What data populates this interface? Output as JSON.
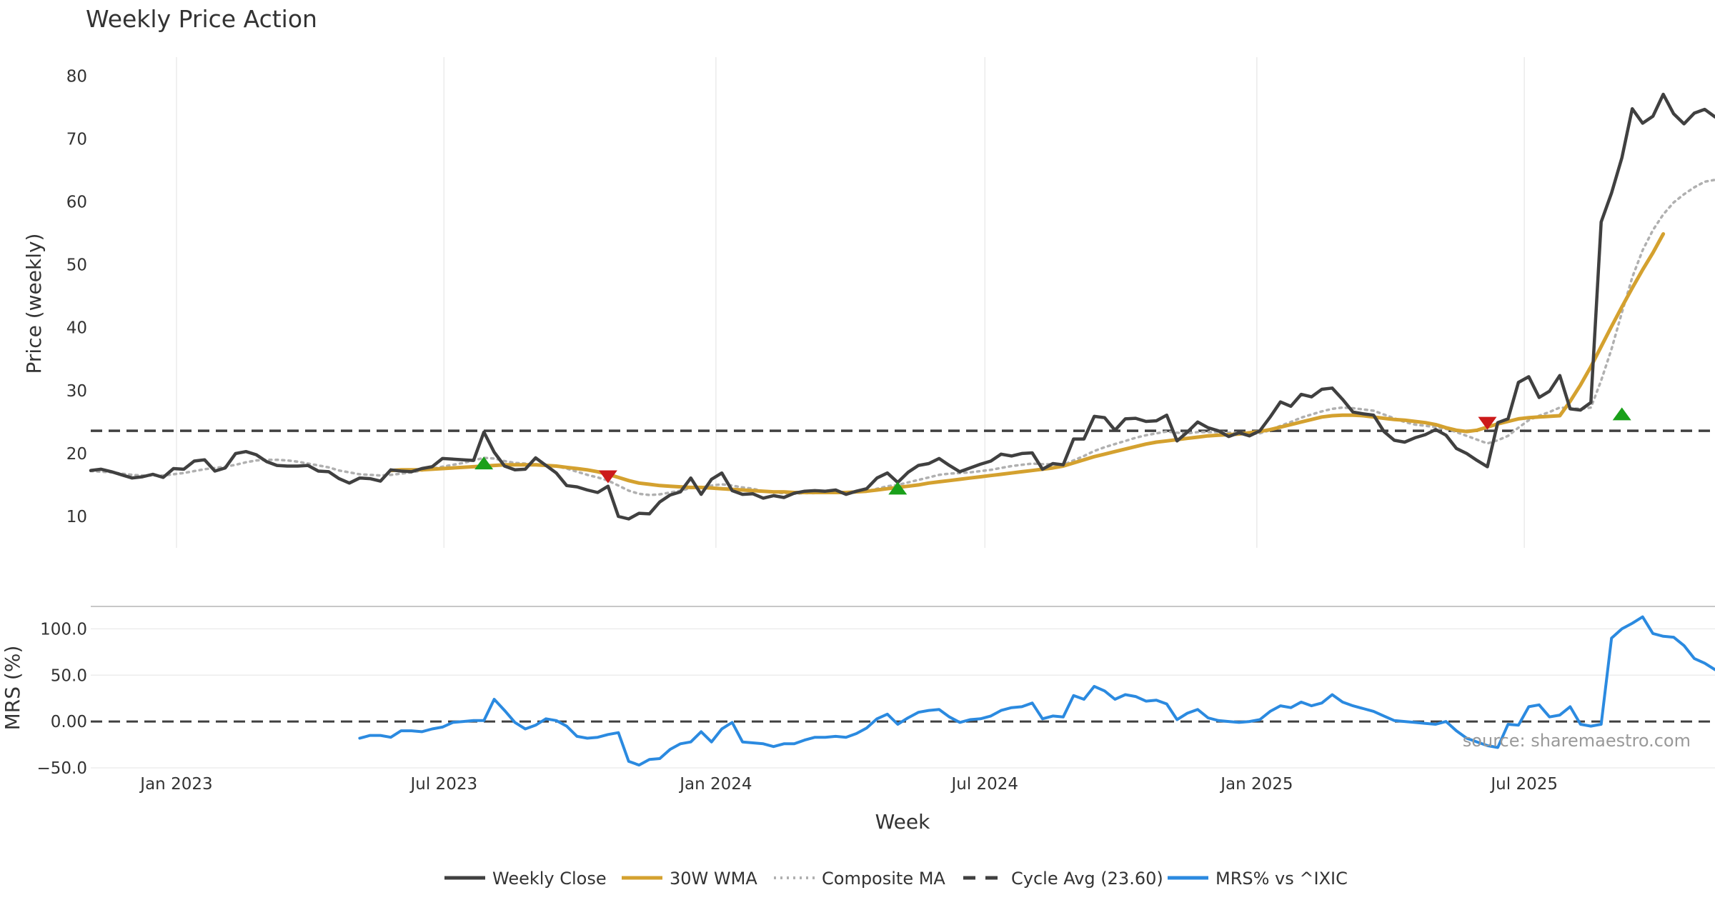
{
  "chart_data": {
    "type": "line",
    "title": "Weekly Price Action",
    "xlabel": "Week",
    "source": "source: sharemaestro.com",
    "x_start": "2022-11-04",
    "x_end": "2025-11-07",
    "x_ticks": [
      {
        "label": "Jan 2023",
        "date": "2023-01-01"
      },
      {
        "label": "Jul 2023",
        "date": "2023-07-01"
      },
      {
        "label": "Jan 2024",
        "date": "2024-01-01"
      },
      {
        "label": "Jul 2024",
        "date": "2024-07-01"
      },
      {
        "label": "Jan 2025",
        "date": "2025-01-01"
      },
      {
        "label": "Jul 2025",
        "date": "2025-07-01"
      }
    ],
    "price_panel": {
      "ylabel": "Price (weekly)",
      "ylim": [
        5,
        83
      ],
      "yticks": [
        10,
        20,
        30,
        40,
        50,
        60,
        70,
        80
      ],
      "cycle_avg": 23.6,
      "series": [
        {
          "key": "close",
          "name": "Weekly Close",
          "color": "#404040",
          "style": "solid",
          "start_week": 0,
          "values": [
            17.3,
            17.5,
            17.1,
            16.6,
            16.1,
            16.3,
            16.7,
            16.2,
            17.6,
            17.5,
            18.8,
            19.0,
            17.2,
            17.7,
            20.0,
            20.3,
            19.8,
            18.7,
            18.1,
            18.0,
            18.0,
            18.1,
            17.2,
            17.1,
            16.0,
            15.3,
            16.1,
            16.0,
            15.6,
            17.4,
            17.2,
            17.1,
            17.6,
            17.9,
            19.2,
            19.1,
            19.0,
            18.9,
            23.4,
            20.2,
            18.0,
            17.4,
            17.5,
            19.3,
            18.1,
            16.9,
            14.9,
            14.7,
            14.2,
            13.8,
            14.8,
            10.0,
            9.6,
            10.5,
            10.4,
            12.3,
            13.4,
            13.9,
            16.1,
            13.5,
            15.9,
            16.9,
            14.1,
            13.5,
            13.6,
            12.9,
            13.3,
            13.0,
            13.7,
            14.0,
            14.1,
            14.0,
            14.2,
            13.5,
            14.0,
            14.4,
            16.1,
            16.9,
            15.4,
            17.0,
            18.1,
            18.4,
            19.2,
            18.1,
            17.1,
            17.7,
            18.3,
            18.8,
            19.9,
            19.6,
            20.0,
            20.1,
            17.5,
            18.4,
            18.2,
            22.3,
            22.3,
            25.9,
            25.7,
            23.7,
            25.5,
            25.6,
            25.1,
            25.2,
            26.1,
            22.0,
            23.4,
            25.0,
            24.1,
            23.6,
            22.7,
            23.3,
            22.8,
            23.6,
            25.8,
            28.2,
            27.5,
            29.4,
            29.0,
            30.2,
            30.4,
            28.6,
            26.6,
            26.3,
            26.1,
            23.5,
            22.1,
            21.8,
            22.5,
            23.0,
            23.8,
            22.9,
            20.8,
            20.0,
            18.9,
            17.9,
            24.9,
            25.5,
            31.3,
            32.2,
            28.9,
            29.9,
            32.4,
            27.1,
            26.9,
            28.1,
            56.8,
            61.4,
            67.0,
            74.8,
            72.5,
            73.6,
            77.1,
            74.0,
            72.4,
            74.1,
            74.7,
            73.5
          ]
        },
        {
          "key": "wma",
          "name": "30W WMA",
          "color": "#d4a12f",
          "style": "solid",
          "start_week": 29,
          "values": [
            17.3,
            17.4,
            17.4,
            17.4,
            17.5,
            17.6,
            17.7,
            17.8,
            17.9,
            18.0,
            18.1,
            18.2,
            18.2,
            18.2,
            18.2,
            18.1,
            18.0,
            17.8,
            17.6,
            17.4,
            17.1,
            16.7,
            16.2,
            15.7,
            15.3,
            15.1,
            14.9,
            14.8,
            14.7,
            14.6,
            14.6,
            14.5,
            14.4,
            14.3,
            14.2,
            14.1,
            14.0,
            13.9,
            13.9,
            13.8,
            13.8,
            13.8,
            13.8,
            13.8,
            13.8,
            13.9,
            14.0,
            14.2,
            14.4,
            14.6,
            14.8,
            15.0,
            15.3,
            15.5,
            15.7,
            15.9,
            16.1,
            16.3,
            16.5,
            16.7,
            16.9,
            17.1,
            17.3,
            17.5,
            17.7,
            18.0,
            18.5,
            19.0,
            19.5,
            19.9,
            20.3,
            20.7,
            21.1,
            21.5,
            21.8,
            22.0,
            22.2,
            22.4,
            22.6,
            22.8,
            22.9,
            23.0,
            23.1,
            23.3,
            23.5,
            23.8,
            24.2,
            24.6,
            25.0,
            25.4,
            25.8,
            26.0,
            26.1,
            26.1,
            26.0,
            25.8,
            25.6,
            25.4,
            25.3,
            25.1,
            24.9,
            24.6,
            24.1,
            23.7,
            23.5,
            23.7,
            24.2,
            24.7,
            25.1,
            25.5,
            25.7,
            25.8,
            25.9,
            26.0,
            28.3,
            30.9,
            33.8,
            37.0,
            40.2,
            43.3,
            46.3,
            49.2,
            51.9,
            54.9
          ]
        },
        {
          "key": "composite",
          "name": "Composite MA",
          "color": "#b0b0b0",
          "style": "dotted",
          "start_week": 0,
          "values": [
            17.2,
            17.1,
            17.0,
            16.8,
            16.6,
            16.5,
            16.5,
            16.5,
            16.7,
            16.9,
            17.2,
            17.5,
            17.7,
            17.9,
            18.2,
            18.6,
            18.9,
            19.0,
            19.0,
            18.9,
            18.7,
            18.4,
            18.1,
            17.8,
            17.3,
            17.0,
            16.7,
            16.6,
            16.5,
            16.6,
            16.8,
            17.0,
            17.3,
            17.6,
            17.9,
            18.2,
            18.5,
            18.9,
            19.3,
            19.2,
            18.8,
            18.5,
            18.4,
            18.3,
            18.2,
            18.0,
            17.6,
            17.1,
            16.6,
            16.2,
            15.7,
            14.9,
            14.1,
            13.6,
            13.4,
            13.5,
            13.8,
            14.1,
            14.5,
            14.6,
            14.9,
            15.1,
            14.9,
            14.6,
            14.4,
            14.0,
            13.8,
            13.7,
            13.6,
            13.7,
            13.7,
            13.8,
            13.8,
            13.8,
            13.9,
            14.0,
            14.4,
            14.8,
            15.0,
            15.4,
            15.8,
            16.2,
            16.6,
            16.8,
            16.9,
            17.0,
            17.2,
            17.4,
            17.7,
            18.0,
            18.2,
            18.4,
            18.3,
            18.3,
            18.2,
            18.9,
            19.6,
            20.4,
            21.0,
            21.5,
            22.0,
            22.5,
            22.9,
            23.2,
            23.5,
            23.3,
            23.2,
            23.4,
            23.4,
            23.4,
            23.3,
            23.3,
            23.1,
            23.2,
            23.7,
            24.4,
            25.0,
            25.7,
            26.2,
            26.7,
            27.1,
            27.3,
            27.2,
            27.0,
            26.8,
            26.2,
            25.6,
            25.0,
            24.6,
            24.4,
            24.2,
            23.9,
            23.4,
            22.8,
            22.2,
            21.6,
            22.1,
            22.8,
            24.1,
            25.3,
            26.0,
            26.6,
            27.3,
            27.2,
            27.1,
            27.3,
            31.6,
            36.6,
            42.4,
            48.0,
            52.3,
            55.5,
            58.0,
            59.9,
            61.2,
            62.3,
            63.2,
            63.5
          ]
        }
      ],
      "markers": [
        {
          "type": "buy",
          "week": 38,
          "price": 18.5,
          "color": "#1aa01a"
        },
        {
          "type": "sell",
          "week": 50,
          "price": 16.3,
          "color": "#cc1a1a"
        },
        {
          "type": "buy",
          "week": 78,
          "price": 14.5,
          "color": "#1aa01a"
        },
        {
          "type": "sell",
          "week": 135,
          "price": 24.8,
          "color": "#cc1a1a"
        },
        {
          "type": "buy",
          "week": 148,
          "price": 26.3,
          "color": "#1aa01a"
        }
      ]
    },
    "mrs_panel": {
      "ylabel": "MRS (%)",
      "ylim": [
        -50,
        125
      ],
      "yticks": [
        -50,
        0,
        50,
        100
      ],
      "ytick_labels": [
        "−50.0",
        "0.00",
        "50.0",
        "100.0"
      ],
      "series": [
        {
          "key": "mrs",
          "name": "MRS% vs ^IXIC",
          "color": "#2b8ae0",
          "style": "solid",
          "start_week": 26,
          "values": [
            -18,
            -15,
            -15,
            -17,
            -10,
            -10,
            -11,
            -8,
            -6,
            -1,
            0,
            1,
            1,
            24,
            12,
            -1,
            -8,
            -4,
            3,
            1,
            -5,
            -16,
            -18,
            -17,
            -14,
            -12,
            -43,
            -47,
            -41,
            -40,
            -30,
            -24,
            -22,
            -11,
            -22,
            -8,
            -1,
            -22,
            -23,
            -24,
            -27,
            -24,
            -24,
            -20,
            -17,
            -17,
            -16,
            -17,
            -13,
            -7,
            3,
            8,
            -3,
            4,
            10,
            12,
            13,
            5,
            -1,
            2,
            3,
            6,
            12,
            15,
            16,
            20,
            3,
            6,
            5,
            28,
            24,
            38,
            33,
            24,
            29,
            27,
            22,
            23,
            19,
            2,
            9,
            13,
            4,
            1,
            0,
            -1,
            0,
            2,
            11,
            17,
            15,
            21,
            17,
            20,
            29,
            21,
            17,
            14,
            11,
            6,
            1,
            0,
            -1,
            -2,
            -3,
            0,
            -10,
            -18,
            -22,
            -26,
            -28,
            -3,
            -4,
            16,
            18,
            5,
            7,
            16,
            -3,
            -5,
            -3,
            90,
            100,
            106,
            113,
            95,
            92,
            91,
            82,
            68,
            63,
            56,
            54
          ]
        }
      ]
    },
    "legend": [
      {
        "key": "close",
        "label": "Weekly Close",
        "color": "#404040",
        "style": "solid"
      },
      {
        "key": "wma",
        "label": "30W WMA",
        "color": "#d4a12f",
        "style": "solid"
      },
      {
        "key": "composite",
        "label": "Composite MA",
        "color": "#b0b0b0",
        "style": "dotted"
      },
      {
        "key": "cycle",
        "label": "Cycle Avg (23.60)",
        "color": "#404040",
        "style": "dashed"
      },
      {
        "key": "mrs",
        "label": "MRS% vs ^IXIC",
        "color": "#2b8ae0",
        "style": "solid"
      }
    ]
  }
}
